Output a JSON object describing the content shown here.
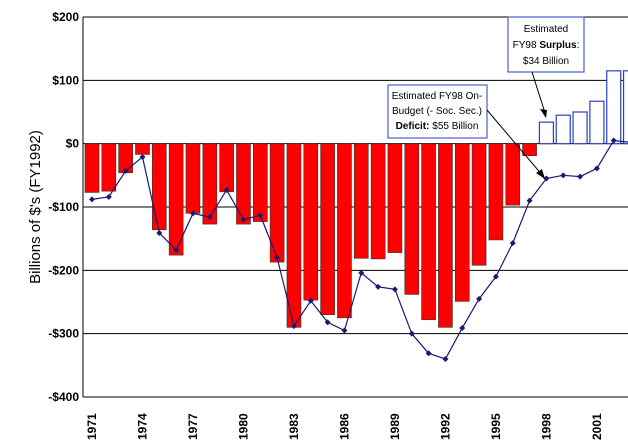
{
  "chart_data": {
    "type": "bar",
    "y_label": "Billions of $'s (FY1992)",
    "categories": [
      "1971",
      null,
      null,
      "1974",
      null,
      null,
      "1977",
      null,
      null,
      "1980",
      null,
      null,
      "1983",
      null,
      null,
      "1986",
      null,
      null,
      "1989",
      null,
      null,
      "1992",
      null,
      null,
      "1995",
      null,
      null,
      "1998",
      null,
      null,
      "2001",
      null,
      null
    ],
    "series": [
      {
        "type": "bar",
        "negative_color": "#ff0000",
        "positive_color": "#ffffff",
        "edge_color": "#2a3fbf",
        "values": [
          -77,
          -75,
          -46,
          -17,
          -136,
          -176,
          -110,
          -127,
          -76,
          -127,
          -123,
          -187,
          -290,
          -247,
          -270,
          -275,
          -181,
          -182,
          -172,
          -238,
          -278,
          -290,
          -249,
          -192,
          -152,
          -97,
          -19,
          34,
          45,
          50,
          67,
          115,
          115
        ]
      },
      {
        "type": "line",
        "color": "#1a1a6e",
        "values": [
          -88,
          -84,
          -43,
          -21,
          -141,
          -168,
          -110,
          -116,
          -73,
          -120,
          -113,
          -180,
          -288,
          -248,
          -282,
          -295,
          -204,
          -226,
          -230,
          -300,
          -331,
          -340,
          -291,
          -245,
          -210,
          -157,
          -90,
          -55,
          -50,
          -52,
          -39,
          5,
          2
        ]
      }
    ],
    "ylim": [
      -400,
      200
    ],
    "yticks": [
      {
        "value": -400,
        "label": "-$400"
      },
      {
        "value": -300,
        "label": "-$300"
      },
      {
        "value": -200,
        "label": "-$200"
      },
      {
        "value": -100,
        "label": "-$100"
      },
      {
        "value": 0,
        "label": "$0"
      },
      {
        "value": 100,
        "label": "$100"
      },
      {
        "value": 200,
        "label": "$200"
      }
    ],
    "grid": true,
    "annotations": [
      {
        "lines": [
          [
            "Estimated"
          ],
          [
            "FY98 ",
            "Surplus",
            ":"
          ],
          [
            "$34 Billion"
          ]
        ]
      },
      {
        "lines": [
          [
            "Estimated FY98 On-"
          ],
          [
            "Budget (- Soc. Sec.)"
          ],
          [
            "Deficit:",
            "  $55 Billion"
          ]
        ]
      }
    ]
  }
}
